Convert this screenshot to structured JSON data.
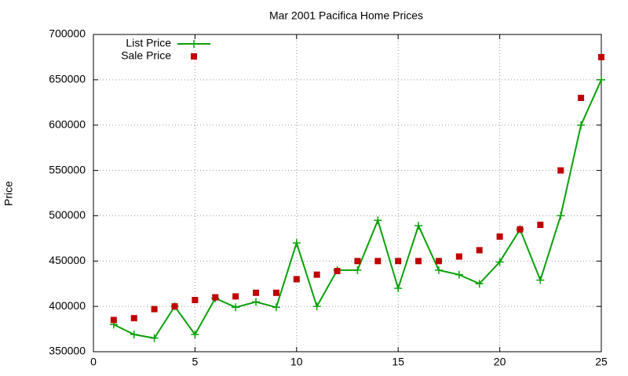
{
  "chart_data": {
    "type": "line",
    "title": "Mar 2001 Pacifica Home Prices",
    "y_label": "Price",
    "x": [
      1,
      2,
      3,
      4,
      5,
      6,
      7,
      8,
      9,
      10,
      11,
      12,
      13,
      14,
      15,
      16,
      17,
      18,
      19,
      20,
      21,
      22,
      23,
      24,
      25
    ],
    "series": [
      {
        "name": "List Price",
        "color": "#0aa00a",
        "style": "linespoints",
        "values": [
          380000,
          369000,
          365000,
          400000,
          369000,
          409000,
          399000,
          405000,
          399000,
          470000,
          400000,
          440000,
          440000,
          495000,
          420000,
          489000,
          440000,
          435000,
          425000,
          449000,
          485000,
          429000,
          500000,
          600000,
          650000
        ]
      },
      {
        "name": "Sale Price",
        "color": "#c00000",
        "style": "points",
        "values": [
          385000,
          387000,
          397000,
          400000,
          407000,
          410000,
          411000,
          415000,
          415000,
          430000,
          435000,
          439000,
          450000,
          450000,
          450000,
          450000,
          450000,
          455000,
          462000,
          477000,
          485000,
          490000,
          550000,
          630000,
          675000
        ]
      }
    ],
    "xlim": [
      0,
      25
    ],
    "xticks": [
      0,
      5,
      10,
      15,
      20,
      25
    ],
    "ylim": [
      350000,
      700000
    ],
    "yticks": [
      350000,
      400000,
      450000,
      500000,
      550000,
      600000,
      650000,
      700000
    ],
    "grid": true,
    "legend": "top-left"
  }
}
